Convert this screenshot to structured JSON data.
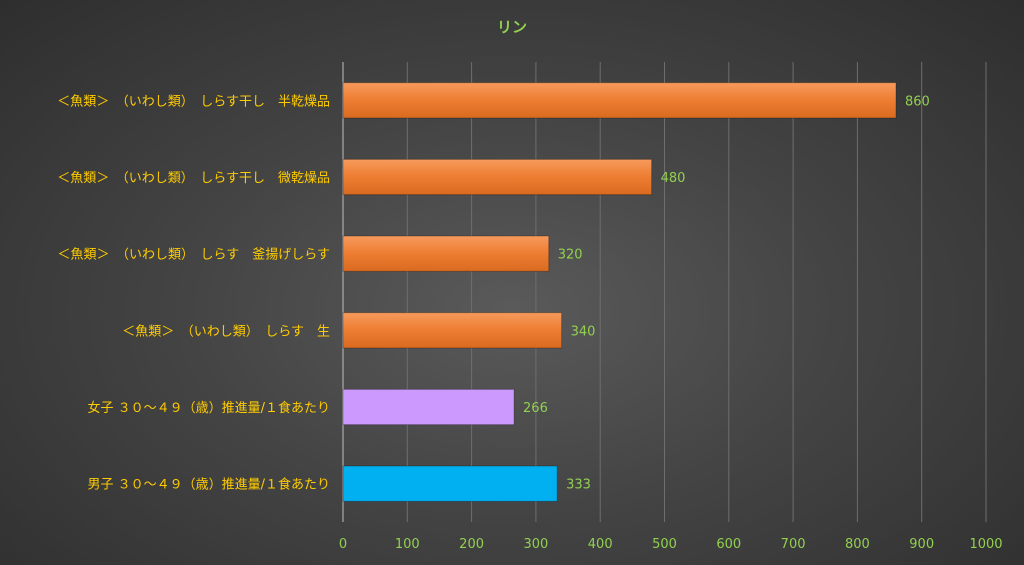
{
  "chart_data": {
    "type": "bar",
    "orientation": "horizontal",
    "title": "リン",
    "xlabel": "",
    "ylabel": "",
    "xlim": [
      0,
      1000
    ],
    "xticks": [
      0,
      100,
      200,
      300,
      400,
      500,
      600,
      700,
      800,
      900,
      1000
    ],
    "grid": true,
    "legend": "none",
    "categories": [
      "＜魚類＞　（いわし類）　しらす干し　半乾燥品",
      "＜魚類＞　（いわし類）　しらす干し　微乾燥品",
      "＜魚類＞　（いわし類）　しらす　釜揚げしらす",
      "＜魚類＞　（いわし類）　しらす　生",
      "女子 ３０～４９（歳）推進量/１食あたり",
      "男子 ３０～４９（歳）推進量/１食あたり"
    ],
    "values": [
      860,
      480,
      320,
      340,
      266,
      333
    ],
    "value_labels": [
      "860",
      "480",
      "320",
      "340",
      "266",
      "333"
    ],
    "bar_colors": [
      "#ed7d31",
      "#ed7d31",
      "#ed7d31",
      "#ed7d31",
      "#cc99ff",
      "#00b0f0"
    ]
  }
}
